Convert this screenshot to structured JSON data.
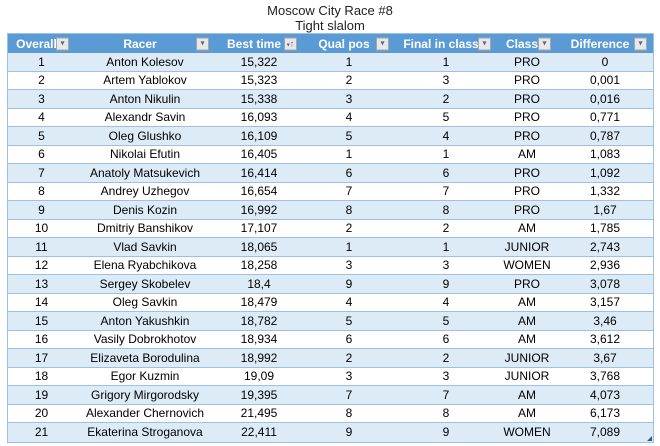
{
  "page": {
    "title": "Moscow City Race #8",
    "subtitle": "Tight slalom"
  },
  "icons": {
    "filter_dropdown": "▾",
    "sort_ascending": "↑"
  },
  "colors": {
    "header_bg": "#5B9BD5",
    "header_text": "#FFFFFF",
    "band_row_bg": "#DDEBF7",
    "plain_row_bg": "#FFFFFF",
    "grid_border": "#9BC2E6",
    "cell_text": "#000000",
    "filter_triangle": "#50678C",
    "resize_handle": "#2F5597"
  },
  "table": {
    "columns": [
      {
        "label": "Overall",
        "filter": true,
        "sorted": null
      },
      {
        "label": "Racer",
        "filter": true,
        "sorted": null
      },
      {
        "label": "Best time",
        "filter": true,
        "sorted": "ascending"
      },
      {
        "label": "Qual pos",
        "filter": true,
        "sorted": null
      },
      {
        "label": "Final in class",
        "filter": true,
        "sorted": null
      },
      {
        "label": "Class",
        "filter": true,
        "sorted": null
      },
      {
        "label": "Difference",
        "filter": true,
        "sorted": null
      }
    ],
    "rows": [
      [
        "1",
        "Anton Kolesov",
        "15,322",
        "1",
        "1",
        "PRO",
        "0"
      ],
      [
        "2",
        "Artem Yablokov",
        "15,323",
        "2",
        "3",
        "PRO",
        "0,001"
      ],
      [
        "3",
        "Anton Nikulin",
        "15,338",
        "3",
        "2",
        "PRO",
        "0,016"
      ],
      [
        "4",
        "Alexandr Savin",
        "16,093",
        "4",
        "5",
        "PRO",
        "0,771"
      ],
      [
        "5",
        "Oleg Glushko",
        "16,109",
        "5",
        "4",
        "PRO",
        "0,787"
      ],
      [
        "6",
        "Nikolai Efutin",
        "16,405",
        "1",
        "1",
        "AM",
        "1,083"
      ],
      [
        "7",
        "Anatoly Matsukevich",
        "16,414",
        "6",
        "6",
        "PRO",
        "1,092"
      ],
      [
        "8",
        "Andrey Uzhegov",
        "16,654",
        "7",
        "7",
        "PRO",
        "1,332"
      ],
      [
        "9",
        "Denis Kozin",
        "16,992",
        "8",
        "8",
        "PRO",
        "1,67"
      ],
      [
        "10",
        "Dmitriy Banshikov",
        "17,107",
        "2",
        "2",
        "AM",
        "1,785"
      ],
      [
        "11",
        "Vlad Savkin",
        "18,065",
        "1",
        "1",
        "JUNIOR",
        "2,743"
      ],
      [
        "12",
        "Elena Ryabchikova",
        "18,258",
        "3",
        "3",
        "WOMEN",
        "2,936"
      ],
      [
        "13",
        "Sergey Skobelev",
        "18,4",
        "9",
        "9",
        "PRO",
        "3,078"
      ],
      [
        "14",
        "Oleg Savkin",
        "18,479",
        "4",
        "4",
        "AM",
        "3,157"
      ],
      [
        "15",
        "Anton Yakushkin",
        "18,782",
        "5",
        "5",
        "AM",
        "3,46"
      ],
      [
        "16",
        "Vasily Dobrokhotov",
        "18,934",
        "6",
        "6",
        "AM",
        "3,612"
      ],
      [
        "17",
        "Elizaveta Borodulina",
        "18,992",
        "2",
        "2",
        "JUNIOR",
        "3,67"
      ],
      [
        "18",
        "Egor Kuzmin",
        "19,09",
        "3",
        "3",
        "JUNIOR",
        "3,768"
      ],
      [
        "19",
        "Grigory Mirgorodsky",
        "19,395",
        "7",
        "7",
        "AM",
        "4,073"
      ],
      [
        "20",
        "Alexander Chernovich",
        "21,495",
        "8",
        "8",
        "AM",
        "6,173"
      ],
      [
        "21",
        "Ekaterina Stroganova",
        "22,411",
        "9",
        "9",
        "WOMEN",
        "7,089"
      ]
    ]
  }
}
